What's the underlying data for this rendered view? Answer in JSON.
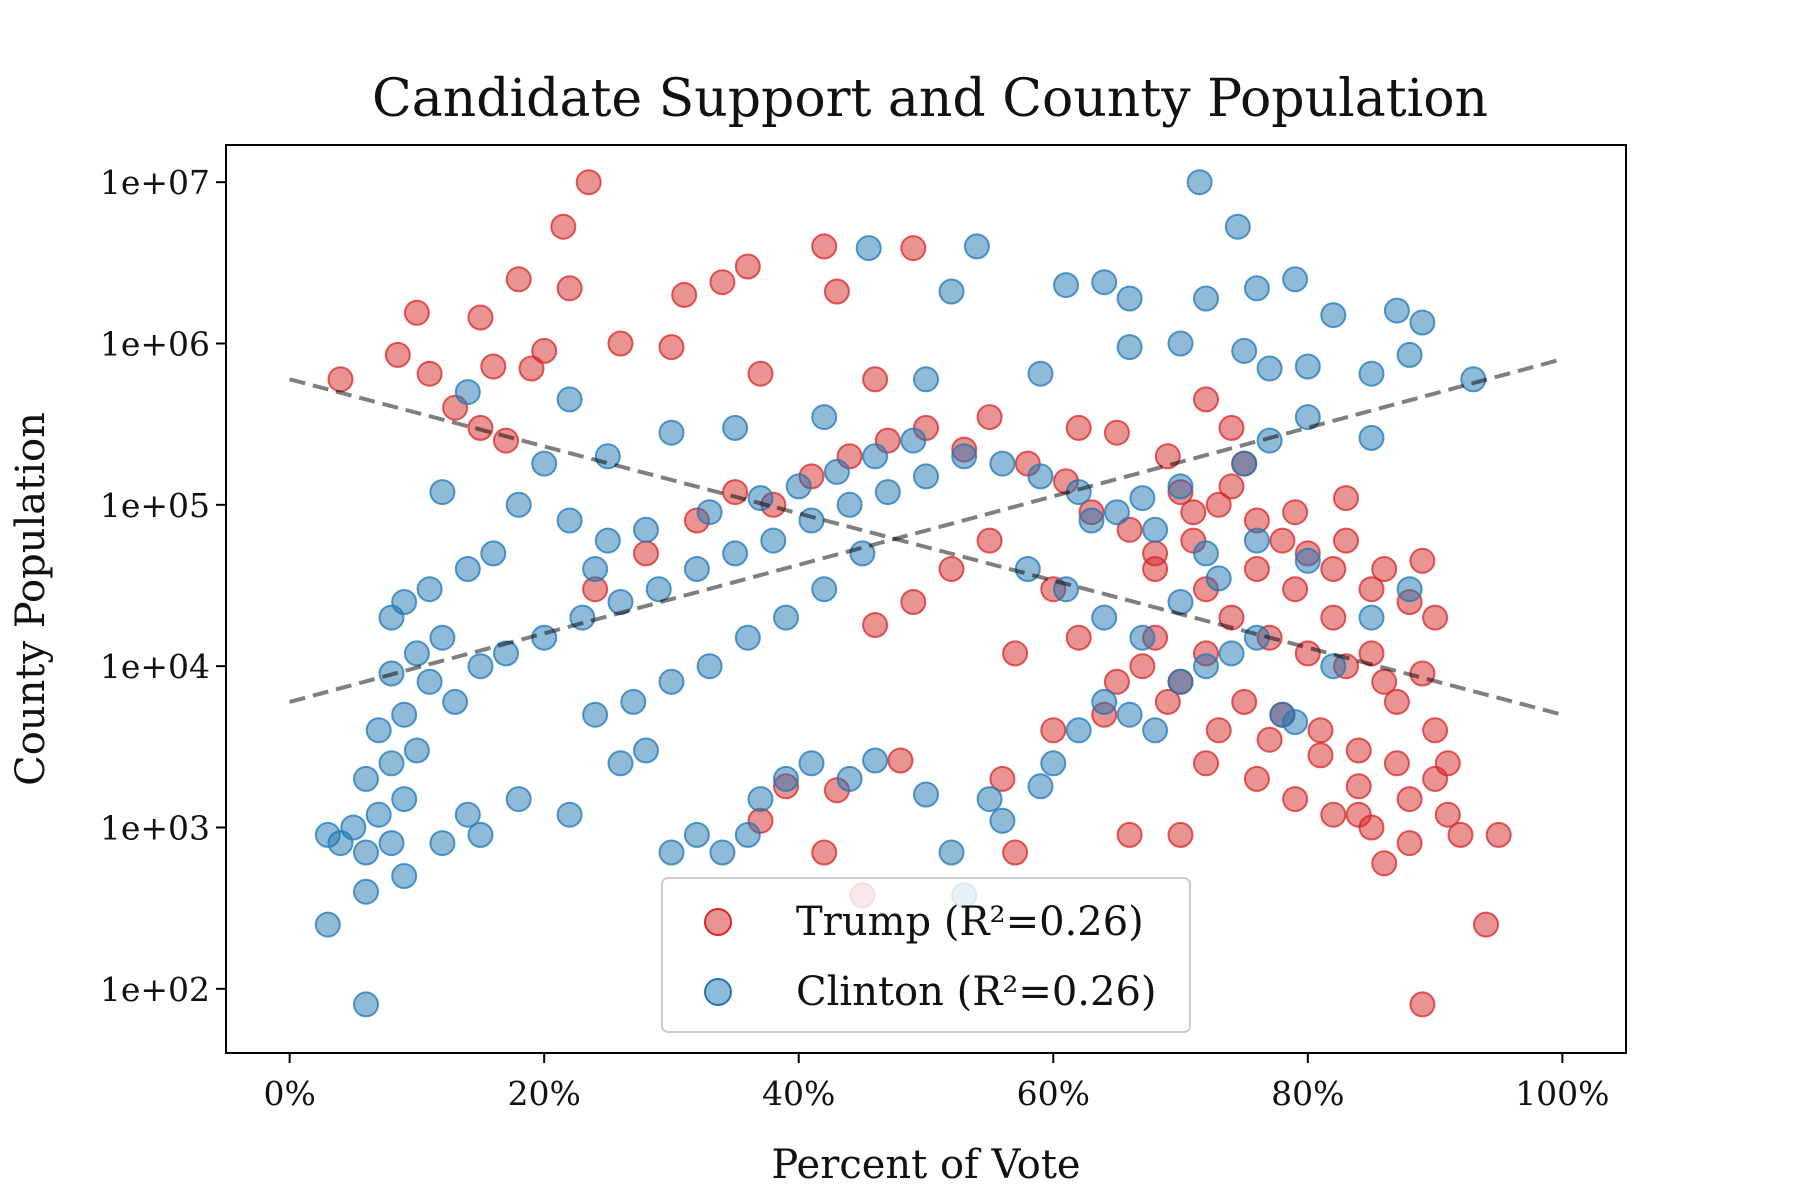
{
  "chart_data": {
    "type": "scatter",
    "title": "Candidate Support and County Population",
    "xlabel": "Percent of Vote",
    "ylabel": "County Population",
    "xlim": [
      -5,
      105
    ],
    "ylog": true,
    "ylim": [
      40,
      17000000
    ],
    "x_ticks": [
      {
        "value": 0,
        "label": "0%"
      },
      {
        "value": 20,
        "label": "20%"
      },
      {
        "value": 40,
        "label": "40%"
      },
      {
        "value": 60,
        "label": "60%"
      },
      {
        "value": 80,
        "label": "80%"
      },
      {
        "value": 100,
        "label": "100%"
      }
    ],
    "y_ticks": [
      {
        "value": 100,
        "label": "1e+02"
      },
      {
        "value": 1000,
        "label": "1e+03"
      },
      {
        "value": 10000,
        "label": "1e+04"
      },
      {
        "value": 100000,
        "label": "1e+05"
      },
      {
        "value": 1000000,
        "label": "1e+06"
      },
      {
        "value": 10000000,
        "label": "1e+07"
      }
    ],
    "grid": false,
    "legend_position": "lower-center",
    "series": [
      {
        "name": "Trump",
        "legend_label": "Trump  (R²=0.26)",
        "color": "#d62728",
        "alpha": 0.5,
        "points": [
          [
            23.5,
            10000000
          ],
          [
            21.5,
            5300000
          ],
          [
            42,
            4000000
          ],
          [
            49,
            3900000
          ],
          [
            18,
            2500000
          ],
          [
            22,
            2200000
          ],
          [
            34,
            2400000
          ],
          [
            43,
            2100000
          ],
          [
            36,
            3000000
          ],
          [
            31,
            2000000
          ],
          [
            10,
            1550000
          ],
          [
            15,
            1450000
          ],
          [
            8.5,
            850000
          ],
          [
            11,
            650000
          ],
          [
            4,
            600000
          ],
          [
            26,
            1000000
          ],
          [
            30,
            950000
          ],
          [
            20,
            900000
          ],
          [
            16,
            720000
          ],
          [
            19,
            700000
          ],
          [
            13,
            400000
          ],
          [
            15,
            300000
          ],
          [
            17,
            250000
          ],
          [
            37,
            650000
          ],
          [
            46,
            600000
          ],
          [
            55,
            350000
          ],
          [
            62,
            300000
          ],
          [
            65,
            280000
          ],
          [
            69,
            200000
          ],
          [
            72,
            450000
          ],
          [
            75,
            180000
          ],
          [
            70,
            120000
          ],
          [
            73,
            100000
          ],
          [
            76,
            80000
          ],
          [
            78,
            60000
          ],
          [
            80,
            50000
          ],
          [
            82,
            40000
          ],
          [
            85,
            30000
          ],
          [
            88,
            25000
          ],
          [
            90,
            20000
          ],
          [
            72,
            30000
          ],
          [
            74,
            20000
          ],
          [
            77,
            15000
          ],
          [
            80,
            12000
          ],
          [
            83,
            10000
          ],
          [
            86,
            8000
          ],
          [
            89,
            9000
          ],
          [
            70,
            8000
          ],
          [
            75,
            6000
          ],
          [
            78,
            5000
          ],
          [
            81,
            4000
          ],
          [
            84,
            3000
          ],
          [
            87,
            2500
          ],
          [
            90,
            2000
          ],
          [
            72,
            2500
          ],
          [
            76,
            2000
          ],
          [
            79,
            1500
          ],
          [
            82,
            1200
          ],
          [
            85,
            1000
          ],
          [
            88,
            800
          ],
          [
            91,
            1200
          ],
          [
            92,
            900
          ],
          [
            95,
            900
          ],
          [
            94,
            250
          ],
          [
            89,
            80
          ],
          [
            84,
            1200
          ],
          [
            86,
            600
          ],
          [
            70,
            900
          ],
          [
            66,
            900
          ],
          [
            57,
            700
          ],
          [
            42,
            700
          ],
          [
            45,
            380
          ],
          [
            37,
            1100
          ],
          [
            39,
            1800
          ],
          [
            43,
            1700
          ],
          [
            48,
            2600
          ],
          [
            56,
            2000
          ],
          [
            60,
            4000
          ],
          [
            64,
            5000
          ],
          [
            67,
            10000
          ],
          [
            68,
            40000
          ],
          [
            71,
            60000
          ],
          [
            74,
            300000
          ],
          [
            68,
            15000
          ],
          [
            24,
            30000
          ],
          [
            28,
            50000
          ],
          [
            32,
            80000
          ],
          [
            35,
            120000
          ],
          [
            38,
            100000
          ],
          [
            41,
            150000
          ],
          [
            44,
            200000
          ],
          [
            47,
            250000
          ],
          [
            50,
            300000
          ],
          [
            53,
            220000
          ],
          [
            58,
            180000
          ],
          [
            61,
            140000
          ],
          [
            63,
            90000
          ],
          [
            66,
            70000
          ],
          [
            55,
            60000
          ],
          [
            52,
            40000
          ],
          [
            49,
            25000
          ],
          [
            46,
            18000
          ],
          [
            60,
            30000
          ],
          [
            57,
            12000
          ],
          [
            62,
            15000
          ],
          [
            65,
            8000
          ],
          [
            69,
            6000
          ],
          [
            73,
            4000
          ],
          [
            77,
            3500
          ],
          [
            81,
            2800
          ],
          [
            84,
            1800
          ],
          [
            88,
            1500
          ],
          [
            91,
            2500
          ],
          [
            90,
            4000
          ],
          [
            87,
            6000
          ],
          [
            85,
            12000
          ],
          [
            82,
            20000
          ],
          [
            79,
            30000
          ],
          [
            76,
            40000
          ],
          [
            79,
            90000
          ],
          [
            83,
            60000
          ],
          [
            86,
            40000
          ],
          [
            89,
            45000
          ],
          [
            83,
            110000
          ],
          [
            74,
            130000
          ],
          [
            71,
            90000
          ],
          [
            68,
            50000
          ],
          [
            72,
            12000
          ]
        ]
      },
      {
        "name": "Clinton",
        "legend_label": "Clinton (R²=0.26)",
        "color": "#1f77b4",
        "alpha": 0.5,
        "points": [
          [
            71.5,
            10000000
          ],
          [
            74.5,
            5300000
          ],
          [
            54,
            4000000
          ],
          [
            45.5,
            3900000
          ],
          [
            79,
            2500000
          ],
          [
            76,
            2200000
          ],
          [
            64,
            2400000
          ],
          [
            52,
            2100000
          ],
          [
            61,
            2300000
          ],
          [
            66,
            1900000
          ],
          [
            87,
            1600000
          ],
          [
            82,
            1500000
          ],
          [
            89,
            1350000
          ],
          [
            72,
            1900000
          ],
          [
            93,
            600000
          ],
          [
            70,
            1000000
          ],
          [
            66,
            950000
          ],
          [
            75,
            900000
          ],
          [
            80,
            720000
          ],
          [
            77,
            700000
          ],
          [
            85,
            650000
          ],
          [
            88,
            850000
          ],
          [
            85,
            260000
          ],
          [
            59,
            650000
          ],
          [
            50,
            600000
          ],
          [
            42,
            350000
          ],
          [
            35,
            300000
          ],
          [
            30,
            280000
          ],
          [
            25,
            200000
          ],
          [
            22,
            450000
          ],
          [
            20,
            180000
          ],
          [
            14,
            500000
          ],
          [
            12,
            120000
          ],
          [
            18,
            100000
          ],
          [
            22,
            80000
          ],
          [
            25,
            60000
          ],
          [
            16,
            50000
          ],
          [
            14,
            40000
          ],
          [
            11,
            30000
          ],
          [
            9,
            25000
          ],
          [
            8,
            20000
          ],
          [
            12,
            15000
          ],
          [
            10,
            12000
          ],
          [
            8,
            9000
          ],
          [
            11,
            8000
          ],
          [
            13,
            6000
          ],
          [
            9,
            5000
          ],
          [
            7,
            4000
          ],
          [
            10,
            3000
          ],
          [
            8,
            2500
          ],
          [
            6,
            2000
          ],
          [
            9,
            1500
          ],
          [
            7,
            1200
          ],
          [
            5,
            1000
          ],
          [
            4,
            800
          ],
          [
            3,
            900
          ],
          [
            6,
            700
          ],
          [
            8,
            800
          ],
          [
            9,
            500
          ],
          [
            6,
            400
          ],
          [
            3,
            250
          ],
          [
            6,
            80
          ],
          [
            12,
            800
          ],
          [
            15,
            900
          ],
          [
            14,
            1200
          ],
          [
            18,
            1500
          ],
          [
            22,
            1200
          ],
          [
            26,
            2500
          ],
          [
            28,
            3000
          ],
          [
            30,
            700
          ],
          [
            32,
            900
          ],
          [
            34,
            700
          ],
          [
            36,
            900
          ],
          [
            37,
            1500
          ],
          [
            39,
            2000
          ],
          [
            41,
            2500
          ],
          [
            44,
            2000
          ],
          [
            46,
            2600
          ],
          [
            50,
            1600
          ],
          [
            52,
            700
          ],
          [
            55,
            1500
          ],
          [
            59,
            1800
          ],
          [
            53,
            380
          ],
          [
            56,
            1100
          ],
          [
            60,
            2500
          ],
          [
            62,
            4000
          ],
          [
            64,
            6000
          ],
          [
            66,
            5000
          ],
          [
            68,
            4000
          ],
          [
            70,
            8000
          ],
          [
            72,
            10000
          ],
          [
            74,
            12000
          ],
          [
            76,
            15000
          ],
          [
            78,
            5000
          ],
          [
            79,
            4500
          ],
          [
            82,
            10000
          ],
          [
            85,
            20000
          ],
          [
            88,
            30000
          ],
          [
            80,
            45000
          ],
          [
            76,
            60000
          ],
          [
            72,
            50000
          ],
          [
            68,
            70000
          ],
          [
            65,
            90000
          ],
          [
            62,
            120000
          ],
          [
            59,
            150000
          ],
          [
            56,
            180000
          ],
          [
            53,
            200000
          ],
          [
            50,
            150000
          ],
          [
            47,
            120000
          ],
          [
            44,
            100000
          ],
          [
            41,
            80000
          ],
          [
            38,
            60000
          ],
          [
            35,
            50000
          ],
          [
            32,
            40000
          ],
          [
            29,
            30000
          ],
          [
            26,
            25000
          ],
          [
            23,
            20000
          ],
          [
            20,
            15000
          ],
          [
            17,
            12000
          ],
          [
            15,
            10000
          ],
          [
            24,
            40000
          ],
          [
            28,
            70000
          ],
          [
            33,
            90000
          ],
          [
            37,
            110000
          ],
          [
            40,
            130000
          ],
          [
            43,
            160000
          ],
          [
            46,
            200000
          ],
          [
            49,
            250000
          ],
          [
            45,
            50000
          ],
          [
            42,
            30000
          ],
          [
            39,
            20000
          ],
          [
            36,
            15000
          ],
          [
            33,
            10000
          ],
          [
            30,
            8000
          ],
          [
            27,
            6000
          ],
          [
            24,
            5000
          ],
          [
            58,
            40000
          ],
          [
            61,
            30000
          ],
          [
            64,
            20000
          ],
          [
            67,
            15000
          ],
          [
            70,
            25000
          ],
          [
            73,
            35000
          ],
          [
            77,
            250000
          ],
          [
            80,
            350000
          ],
          [
            75,
            180000
          ],
          [
            70,
            130000
          ],
          [
            67,
            110000
          ],
          [
            63,
            80000
          ]
        ]
      }
    ],
    "trendlines": [
      {
        "x": [
          0,
          100
        ],
        "y": [
          6000,
          800000
        ],
        "color": "#000000",
        "alpha": 0.5,
        "style": "dashed"
      },
      {
        "x": [
          0,
          100
        ],
        "y": [
          600000,
          5000
        ],
        "color": "#000000",
        "alpha": 0.5,
        "style": "dashed"
      }
    ]
  }
}
